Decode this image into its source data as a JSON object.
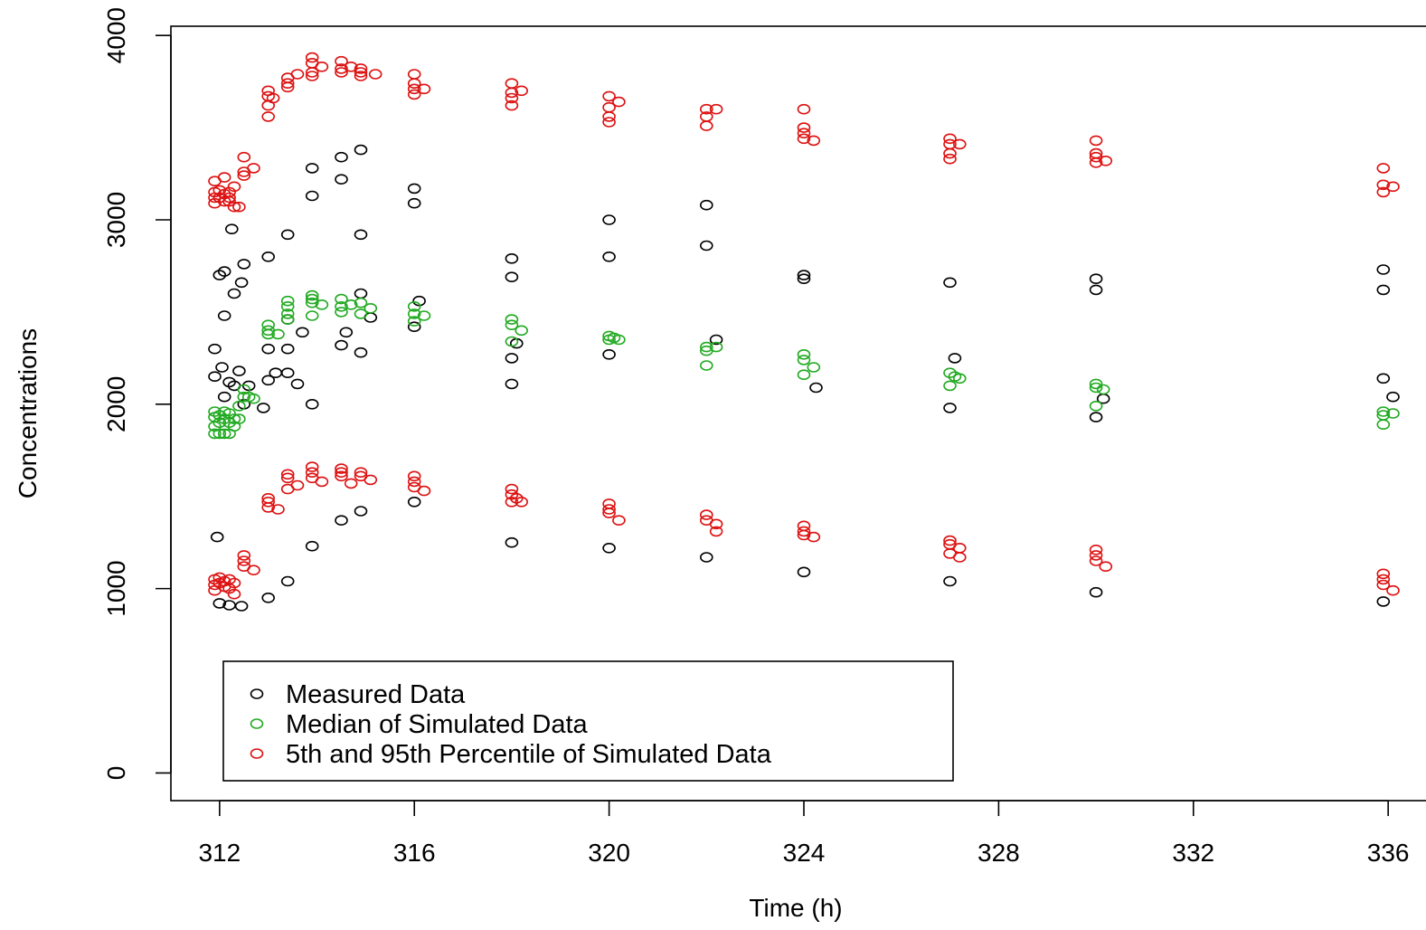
{
  "chart_data": {
    "type": "scatter",
    "xlabel": "Time (h)",
    "ylabel": "Concentrations",
    "xlim": [
      311,
      337
    ],
    "ylim": [
      -150,
      4050
    ],
    "x_ticks": [
      312,
      316,
      320,
      324,
      328,
      332,
      336
    ],
    "y_ticks": [
      0,
      1000,
      2000,
      3000,
      4000
    ],
    "grid": false,
    "legend_position": "bottom-left",
    "colors": {
      "measured": "#000000",
      "median": "#22aa22",
      "percentile": "#dd1111"
    },
    "series": [
      {
        "name": "Measured Data",
        "color": "#000000",
        "points": [
          [
            312.0,
            2700
          ],
          [
            312.1,
            2720
          ],
          [
            311.9,
            2300
          ],
          [
            311.9,
            2150
          ],
          [
            312.05,
            2200
          ],
          [
            312.1,
            2040
          ],
          [
            312.2,
            2120
          ],
          [
            312.3,
            2100
          ],
          [
            312.4,
            2180
          ],
          [
            312.1,
            2480
          ],
          [
            312.3,
            2600
          ],
          [
            312.45,
            2660
          ],
          [
            312.5,
            2760
          ],
          [
            312.25,
            2950
          ],
          [
            311.95,
            1280
          ],
          [
            312.0,
            920
          ],
          [
            312.2,
            910
          ],
          [
            312.45,
            905
          ],
          [
            312.5,
            2000
          ],
          [
            312.6,
            2100
          ],
          [
            312.9,
            1980
          ],
          [
            313.0,
            2800
          ],
          [
            313.0,
            2300
          ],
          [
            313.0,
            2130
          ],
          [
            313.15,
            2170
          ],
          [
            313.0,
            950
          ],
          [
            313.4,
            2920
          ],
          [
            313.4,
            2170
          ],
          [
            313.4,
            2300
          ],
          [
            313.4,
            2460
          ],
          [
            313.4,
            1040
          ],
          [
            313.6,
            2110
          ],
          [
            313.9,
            3130
          ],
          [
            313.9,
            3280
          ],
          [
            313.9,
            2000
          ],
          [
            313.9,
            1230
          ],
          [
            313.7,
            2390
          ],
          [
            314.5,
            3340
          ],
          [
            314.5,
            3220
          ],
          [
            314.5,
            2320
          ],
          [
            314.6,
            2390
          ],
          [
            314.5,
            1370
          ],
          [
            314.9,
            3380
          ],
          [
            314.9,
            2920
          ],
          [
            314.9,
            2280
          ],
          [
            314.9,
            2600
          ],
          [
            314.9,
            1420
          ],
          [
            315.1,
            2470
          ],
          [
            316.0,
            3170
          ],
          [
            316.0,
            3090
          ],
          [
            316.0,
            2420
          ],
          [
            316.1,
            2560
          ],
          [
            316.0,
            1470
          ],
          [
            318.0,
            2790
          ],
          [
            318.0,
            2690
          ],
          [
            318.0,
            2250
          ],
          [
            318.1,
            2330
          ],
          [
            318.0,
            2110
          ],
          [
            318.0,
            1250
          ],
          [
            320.0,
            3000
          ],
          [
            320.0,
            2800
          ],
          [
            320.0,
            2270
          ],
          [
            320.0,
            1220
          ],
          [
            322.0,
            3080
          ],
          [
            322.0,
            2860
          ],
          [
            322.2,
            2350
          ],
          [
            322.0,
            1170
          ],
          [
            324.0,
            2680
          ],
          [
            324.0,
            2700
          ],
          [
            324.25,
            2090
          ],
          [
            324.0,
            1090
          ],
          [
            327.0,
            2660
          ],
          [
            327.1,
            2250
          ],
          [
            327.0,
            1980
          ],
          [
            327.0,
            1040
          ],
          [
            330.0,
            2680
          ],
          [
            330.0,
            2620
          ],
          [
            330.15,
            2030
          ],
          [
            330.0,
            1930
          ],
          [
            330.0,
            980
          ],
          [
            335.9,
            2730
          ],
          [
            335.9,
            2620
          ],
          [
            335.9,
            2140
          ],
          [
            336.1,
            2040
          ],
          [
            335.9,
            930
          ]
        ]
      },
      {
        "name": "Median of Simulated Data",
        "color": "#22aa22",
        "points": [
          [
            311.9,
            1960
          ],
          [
            311.9,
            1930
          ],
          [
            311.9,
            1880
          ],
          [
            311.9,
            1840
          ],
          [
            312.0,
            1940
          ],
          [
            312.0,
            1900
          ],
          [
            312.0,
            1840
          ],
          [
            312.1,
            1960
          ],
          [
            312.1,
            1920
          ],
          [
            312.1,
            1840
          ],
          [
            312.2,
            1950
          ],
          [
            312.2,
            1900
          ],
          [
            312.2,
            1840
          ],
          [
            312.3,
            1920
          ],
          [
            312.3,
            1880
          ],
          [
            312.4,
            1990
          ],
          [
            312.4,
            1920
          ],
          [
            312.5,
            2040
          ],
          [
            312.5,
            2080
          ],
          [
            312.6,
            2040
          ],
          [
            312.7,
            2030
          ],
          [
            313.0,
            2430
          ],
          [
            313.0,
            2400
          ],
          [
            313.0,
            2380
          ],
          [
            313.2,
            2380
          ],
          [
            313.4,
            2560
          ],
          [
            313.4,
            2530
          ],
          [
            313.4,
            2490
          ],
          [
            313.4,
            2460
          ],
          [
            313.9,
            2590
          ],
          [
            313.9,
            2570
          ],
          [
            313.9,
            2550
          ],
          [
            313.9,
            2480
          ],
          [
            314.1,
            2540
          ],
          [
            314.5,
            2570
          ],
          [
            314.5,
            2530
          ],
          [
            314.5,
            2500
          ],
          [
            314.7,
            2540
          ],
          [
            314.9,
            2550
          ],
          [
            314.9,
            2490
          ],
          [
            315.1,
            2520
          ],
          [
            316.0,
            2530
          ],
          [
            316.0,
            2490
          ],
          [
            316.0,
            2450
          ],
          [
            316.2,
            2480
          ],
          [
            318.0,
            2460
          ],
          [
            318.0,
            2430
          ],
          [
            318.0,
            2340
          ],
          [
            318.2,
            2400
          ],
          [
            320.0,
            2370
          ],
          [
            320.0,
            2350
          ],
          [
            320.1,
            2360
          ],
          [
            320.2,
            2350
          ],
          [
            322.0,
            2310
          ],
          [
            322.0,
            2290
          ],
          [
            322.0,
            2210
          ],
          [
            322.2,
            2310
          ],
          [
            324.0,
            2270
          ],
          [
            324.0,
            2240
          ],
          [
            324.0,
            2160
          ],
          [
            324.2,
            2200
          ],
          [
            327.0,
            2170
          ],
          [
            327.0,
            2100
          ],
          [
            327.1,
            2150
          ],
          [
            327.2,
            2140
          ],
          [
            330.0,
            2110
          ],
          [
            330.0,
            2090
          ],
          [
            330.0,
            1990
          ],
          [
            330.15,
            2080
          ],
          [
            335.9,
            1960
          ],
          [
            335.9,
            1940
          ],
          [
            335.9,
            1890
          ],
          [
            336.1,
            1950
          ]
        ]
      },
      {
        "name": "5th and 95th Percentile of Simulated Data",
        "color": "#dd1111",
        "points": [
          [
            311.9,
            3210
          ],
          [
            311.9,
            3150
          ],
          [
            311.9,
            3120
          ],
          [
            311.9,
            3090
          ],
          [
            312.0,
            3160
          ],
          [
            312.0,
            3120
          ],
          [
            312.1,
            3230
          ],
          [
            312.1,
            3140
          ],
          [
            312.1,
            3100
          ],
          [
            312.2,
            3150
          ],
          [
            312.2,
            3120
          ],
          [
            312.2,
            3100
          ],
          [
            312.3,
            3180
          ],
          [
            312.3,
            3070
          ],
          [
            312.4,
            3070
          ],
          [
            312.5,
            3340
          ],
          [
            312.5,
            3260
          ],
          [
            312.5,
            3240
          ],
          [
            312.7,
            3280
          ],
          [
            313.0,
            3700
          ],
          [
            313.0,
            3670
          ],
          [
            313.0,
            3620
          ],
          [
            313.0,
            3560
          ],
          [
            313.1,
            3660
          ],
          [
            313.4,
            3770
          ],
          [
            313.4,
            3740
          ],
          [
            313.4,
            3720
          ],
          [
            313.6,
            3790
          ],
          [
            313.9,
            3880
          ],
          [
            313.9,
            3850
          ],
          [
            313.9,
            3800
          ],
          [
            313.9,
            3780
          ],
          [
            314.1,
            3830
          ],
          [
            314.5,
            3860
          ],
          [
            314.5,
            3820
          ],
          [
            314.5,
            3800
          ],
          [
            314.7,
            3830
          ],
          [
            314.9,
            3820
          ],
          [
            314.9,
            3800
          ],
          [
            314.9,
            3780
          ],
          [
            315.2,
            3790
          ],
          [
            316.0,
            3790
          ],
          [
            316.0,
            3740
          ],
          [
            316.0,
            3710
          ],
          [
            316.0,
            3680
          ],
          [
            316.2,
            3710
          ],
          [
            318.0,
            3740
          ],
          [
            318.0,
            3690
          ],
          [
            318.0,
            3660
          ],
          [
            318.0,
            3620
          ],
          [
            318.2,
            3700
          ],
          [
            320.0,
            3670
          ],
          [
            320.0,
            3610
          ],
          [
            320.0,
            3560
          ],
          [
            320.0,
            3530
          ],
          [
            320.2,
            3640
          ],
          [
            322.0,
            3600
          ],
          [
            322.0,
            3560
          ],
          [
            322.0,
            3510
          ],
          [
            322.2,
            3600
          ],
          [
            324.0,
            3600
          ],
          [
            324.0,
            3500
          ],
          [
            324.0,
            3470
          ],
          [
            324.0,
            3440
          ],
          [
            324.2,
            3430
          ],
          [
            327.0,
            3440
          ],
          [
            327.0,
            3410
          ],
          [
            327.0,
            3360
          ],
          [
            327.0,
            3330
          ],
          [
            327.2,
            3410
          ],
          [
            330.0,
            3430
          ],
          [
            330.0,
            3360
          ],
          [
            330.0,
            3340
          ],
          [
            330.0,
            3310
          ],
          [
            330.2,
            3320
          ],
          [
            335.9,
            3280
          ],
          [
            335.9,
            3190
          ],
          [
            335.9,
            3150
          ],
          [
            336.1,
            3180
          ],
          [
            311.9,
            1050
          ],
          [
            311.9,
            1020
          ],
          [
            311.9,
            990
          ],
          [
            312.0,
            1060
          ],
          [
            312.0,
            1030
          ],
          [
            312.1,
            1040
          ],
          [
            312.1,
            1010
          ],
          [
            312.2,
            1050
          ],
          [
            312.2,
            1000
          ],
          [
            312.3,
            1030
          ],
          [
            312.3,
            970
          ],
          [
            312.5,
            1180
          ],
          [
            312.5,
            1150
          ],
          [
            312.5,
            1120
          ],
          [
            312.7,
            1100
          ],
          [
            313.0,
            1490
          ],
          [
            313.0,
            1470
          ],
          [
            313.0,
            1440
          ],
          [
            313.2,
            1430
          ],
          [
            313.4,
            1620
          ],
          [
            313.4,
            1600
          ],
          [
            313.4,
            1540
          ],
          [
            313.6,
            1560
          ],
          [
            313.9,
            1660
          ],
          [
            313.9,
            1630
          ],
          [
            313.9,
            1600
          ],
          [
            314.1,
            1580
          ],
          [
            314.5,
            1650
          ],
          [
            314.5,
            1630
          ],
          [
            314.5,
            1610
          ],
          [
            314.7,
            1570
          ],
          [
            314.9,
            1630
          ],
          [
            314.9,
            1610
          ],
          [
            315.1,
            1590
          ],
          [
            316.0,
            1610
          ],
          [
            316.0,
            1580
          ],
          [
            316.0,
            1550
          ],
          [
            316.2,
            1530
          ],
          [
            318.0,
            1540
          ],
          [
            318.0,
            1510
          ],
          [
            318.0,
            1470
          ],
          [
            318.1,
            1490
          ],
          [
            318.2,
            1470
          ],
          [
            320.0,
            1460
          ],
          [
            320.0,
            1430
          ],
          [
            320.0,
            1410
          ],
          [
            320.2,
            1370
          ],
          [
            322.0,
            1400
          ],
          [
            322.0,
            1370
          ],
          [
            322.2,
            1350
          ],
          [
            322.2,
            1310
          ],
          [
            324.0,
            1340
          ],
          [
            324.0,
            1310
          ],
          [
            324.0,
            1290
          ],
          [
            324.2,
            1280
          ],
          [
            327.0,
            1260
          ],
          [
            327.0,
            1240
          ],
          [
            327.0,
            1190
          ],
          [
            327.2,
            1220
          ],
          [
            327.2,
            1170
          ],
          [
            330.0,
            1210
          ],
          [
            330.0,
            1180
          ],
          [
            330.0,
            1150
          ],
          [
            330.2,
            1120
          ],
          [
            335.9,
            1080
          ],
          [
            335.9,
            1050
          ],
          [
            335.9,
            1020
          ],
          [
            336.1,
            990
          ]
        ]
      }
    ]
  }
}
